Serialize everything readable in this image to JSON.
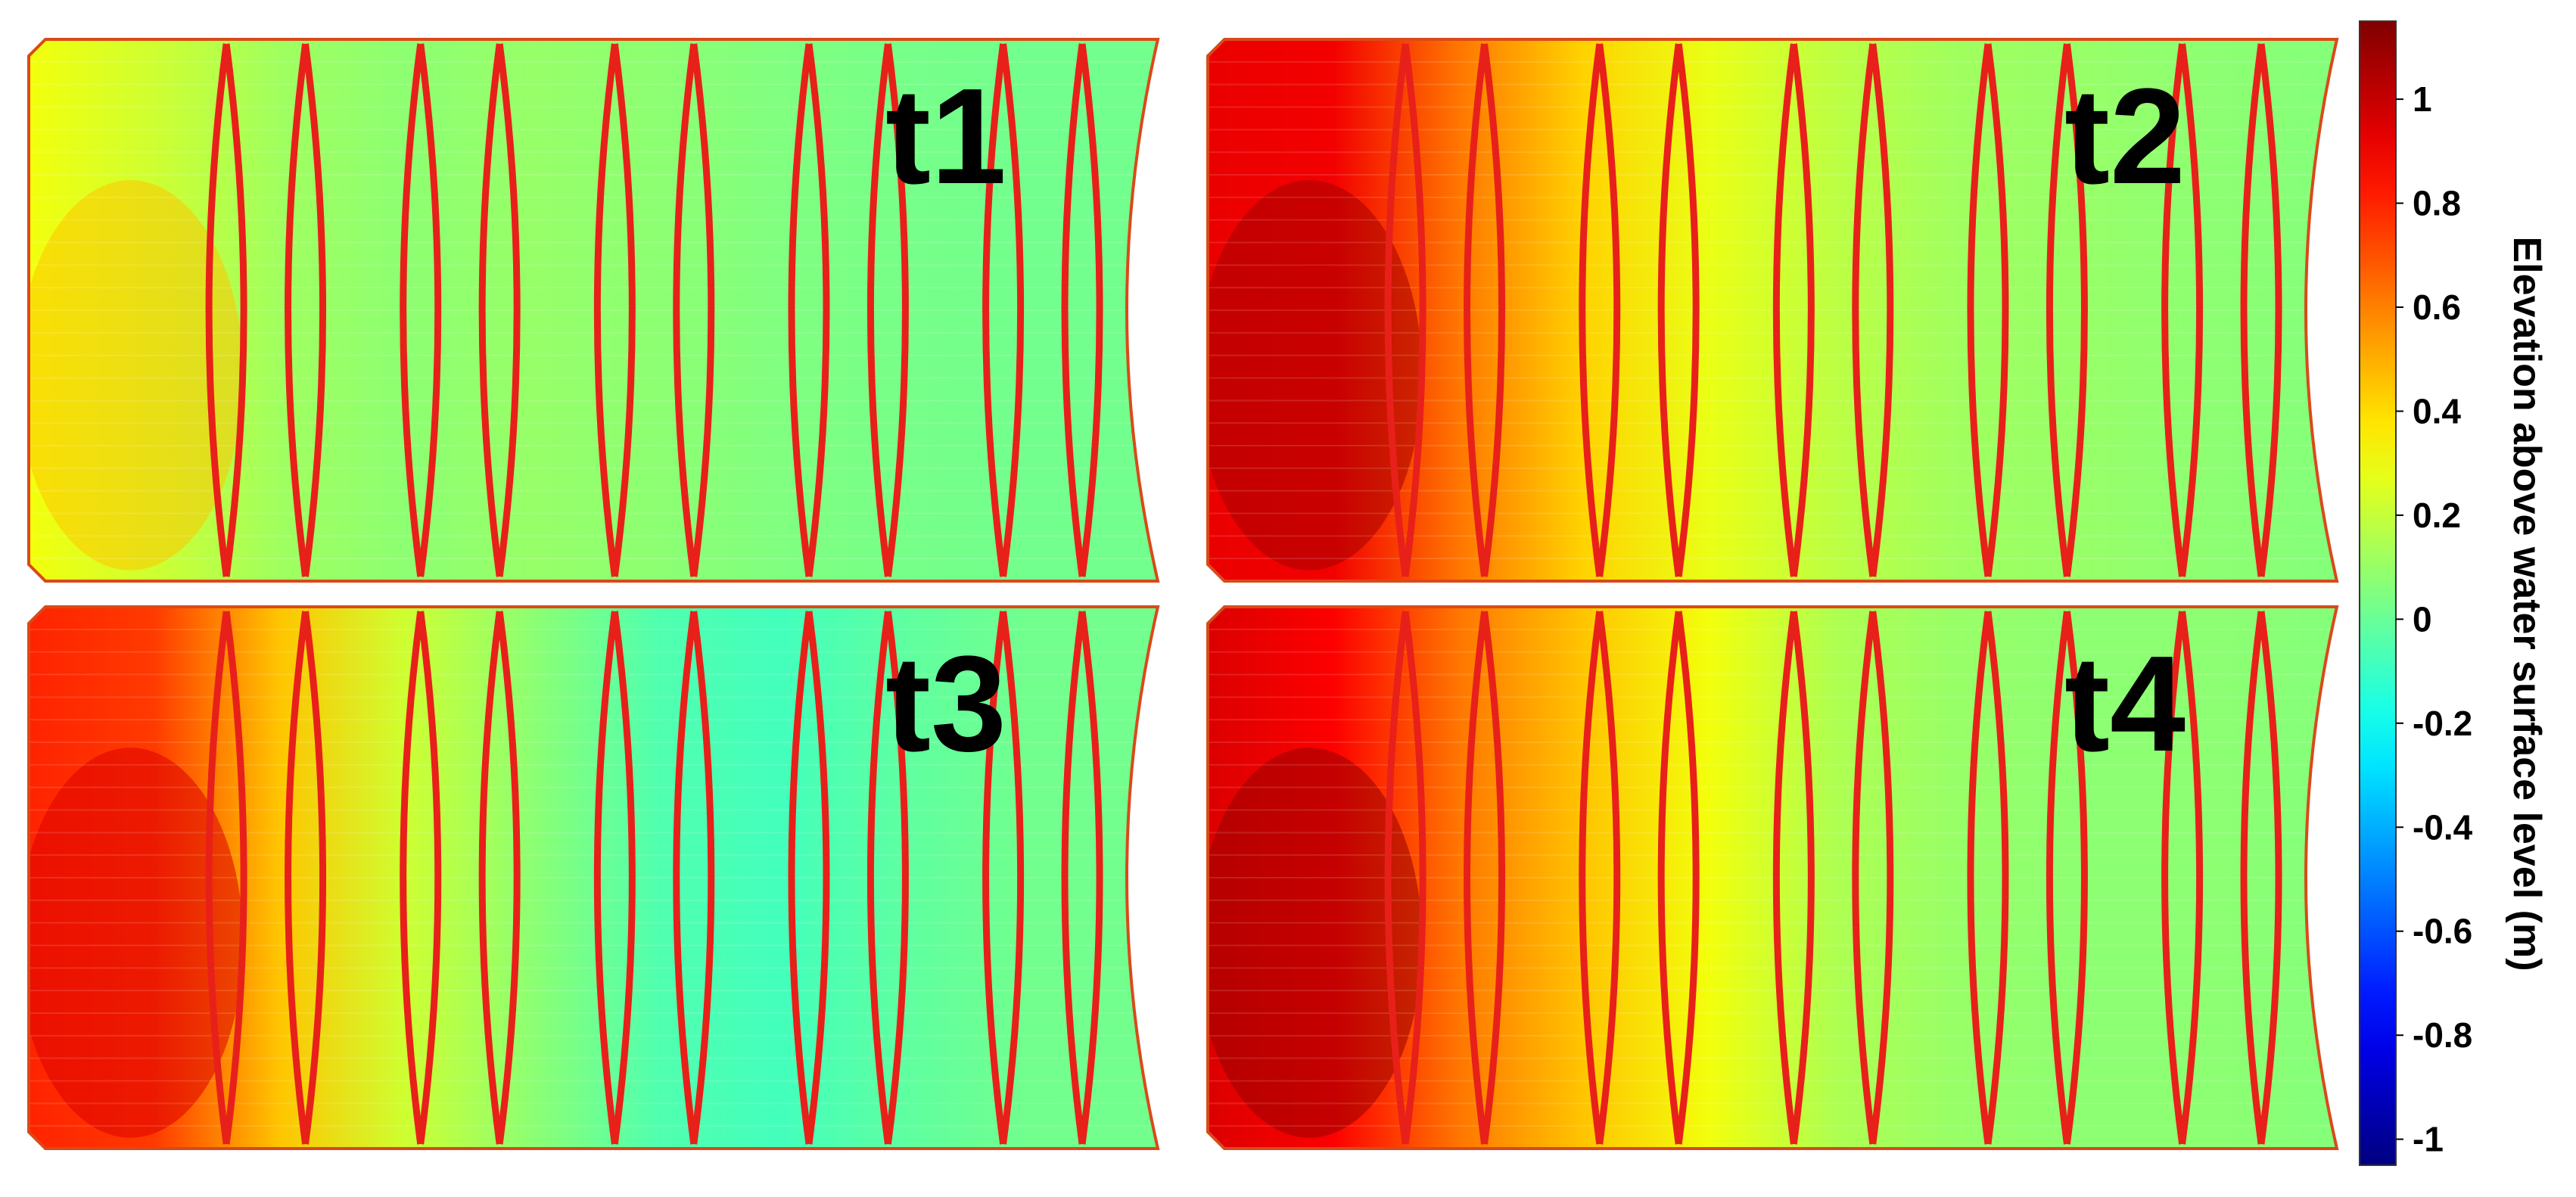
{
  "chart_data": {
    "type": "heatmap",
    "panels": [
      {
        "label": "t1",
        "mean_elevation_pattern": [
          0.3,
          0.22,
          0.12,
          0.08,
          0.1,
          0.08,
          0.05,
          0.03,
          0.02,
          0.02
        ]
      },
      {
        "label": "t2",
        "mean_elevation_pattern": [
          0.92,
          0.9,
          0.62,
          0.42,
          0.28,
          0.18,
          0.12,
          0.1,
          0.08,
          0.06
        ]
      },
      {
        "label": "t3",
        "mean_elevation_pattern": [
          0.8,
          0.75,
          0.45,
          0.22,
          0.08,
          -0.05,
          -0.08,
          -0.02,
          0.02,
          0.02
        ]
      },
      {
        "label": "t4",
        "mean_elevation_pattern": [
          0.95,
          0.88,
          0.62,
          0.45,
          0.3,
          0.15,
          0.1,
          0.08,
          0.08,
          0.06
        ]
      }
    ],
    "colorbar": {
      "label": "Elevation above water surface level (m)",
      "ticks": [
        "1",
        "0.8",
        "0.6",
        "0.4",
        "0.2",
        "0",
        "-0.2",
        "-0.4",
        "-0.6",
        "-0.8",
        "-1"
      ],
      "range": [
        -1.05,
        1.15
      ],
      "colormap": "jet"
    }
  }
}
